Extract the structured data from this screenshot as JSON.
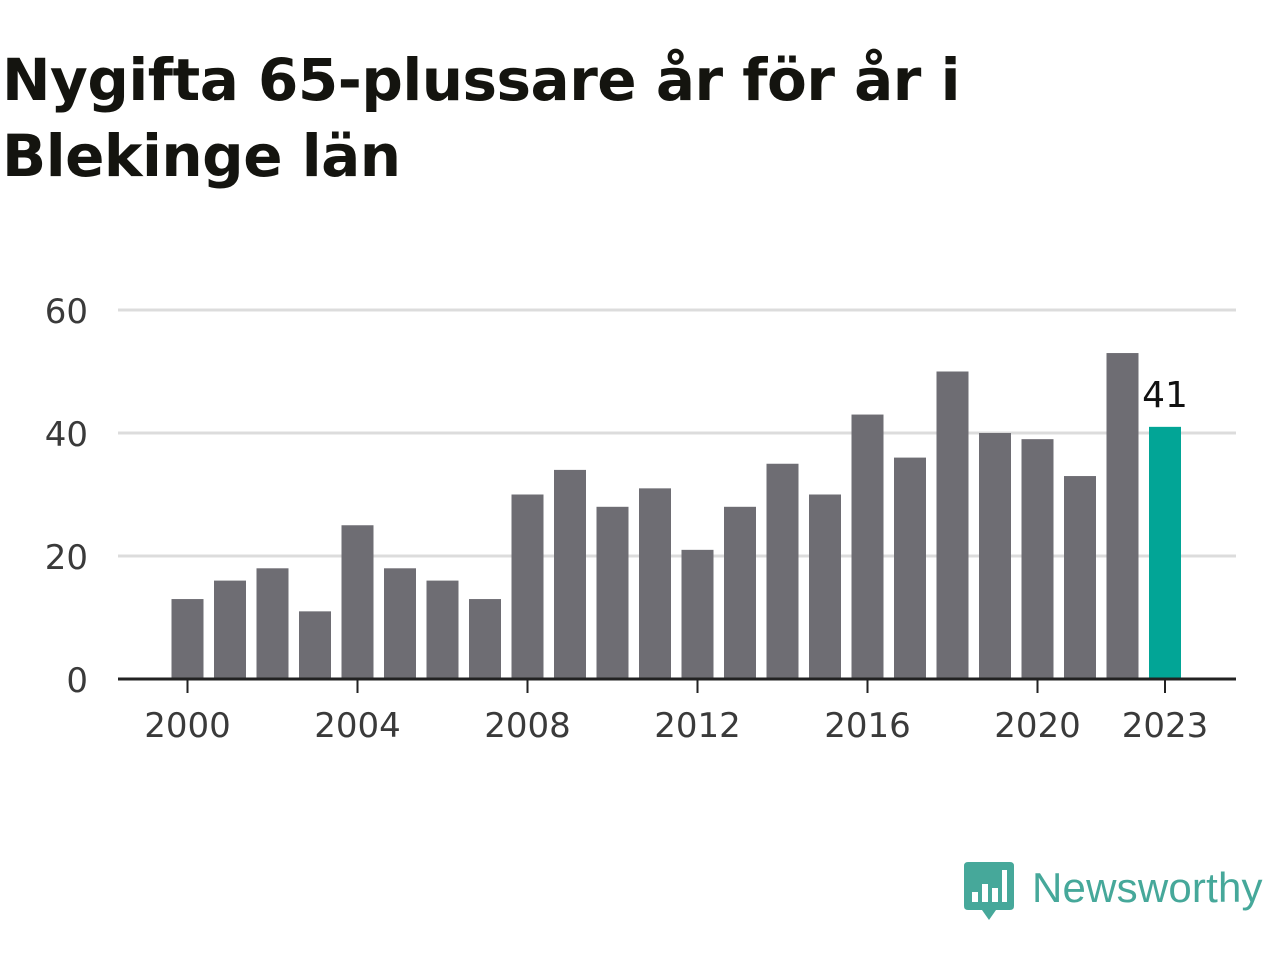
{
  "colors": {
    "bar": "#6e6d73",
    "highlight": "#02a596",
    "grid": "#dcdcdc",
    "axis": "#222222",
    "tick_text": "#3a3a3a",
    "brand": "#46a89a"
  },
  "logo": {
    "name": "Newsworthy",
    "icon": "bar-chart-speech-bubble-icon"
  },
  "chart_data": {
    "type": "bar",
    "title": "Nygifta 65-plussare år för år i Blekinge län",
    "xlabel": "",
    "ylabel": "",
    "categories": [
      2000,
      2001,
      2002,
      2003,
      2004,
      2005,
      2006,
      2007,
      2008,
      2009,
      2010,
      2011,
      2012,
      2013,
      2014,
      2015,
      2016,
      2017,
      2018,
      2019,
      2020,
      2021,
      2022,
      2023
    ],
    "values": [
      13,
      16,
      18,
      11,
      25,
      18,
      16,
      13,
      30,
      34,
      28,
      31,
      21,
      28,
      35,
      30,
      43,
      36,
      50,
      40,
      39,
      33,
      53,
      41
    ],
    "ylim": [
      0,
      60
    ],
    "y_ticks": [
      0,
      20,
      40,
      60
    ],
    "x_tick_labels": [
      "2000",
      "2004",
      "2008",
      "2012",
      "2016",
      "2020",
      "2023"
    ],
    "highlight_category": 2023,
    "highlight_label": "41",
    "grid": true,
    "legend": "none"
  }
}
